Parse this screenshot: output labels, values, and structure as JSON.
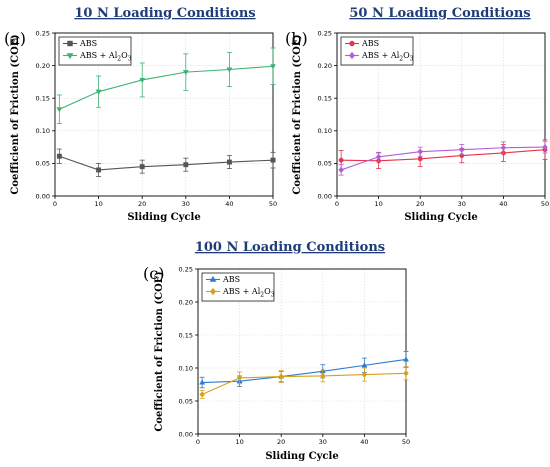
{
  "chart_data": [
    {
      "type": "line",
      "panel_label": "(a)",
      "title": "10 N Loading Conditions",
      "xlabel": "Sliding Cycle",
      "ylabel": "Coefficient of Friction (COF)",
      "xlim": [
        0,
        50
      ],
      "ylim": [
        0,
        0.25
      ],
      "xticks": [
        0,
        10,
        20,
        30,
        40,
        50
      ],
      "yticks": [
        0.0,
        0.05,
        0.1,
        0.15,
        0.2,
        0.25
      ],
      "grid": true,
      "legend_position": "top-left",
      "x": [
        1,
        10,
        20,
        30,
        40,
        50
      ],
      "series": [
        {
          "name": "ABS",
          "legend_sub": "",
          "color": "#555555",
          "marker": "square",
          "values": [
            0.061,
            0.04,
            0.045,
            0.048,
            0.052,
            0.055
          ],
          "errors": [
            0.011,
            0.01,
            0.01,
            0.01,
            0.01,
            0.012
          ]
        },
        {
          "name": "ABS + Al",
          "legend_sub": "2",
          "legend_tail": "O",
          "legend_sub2": "3",
          "color": "#3cb371",
          "marker": "triangle-down",
          "values": [
            0.133,
            0.16,
            0.178,
            0.19,
            0.194,
            0.199
          ],
          "errors": [
            0.022,
            0.024,
            0.026,
            0.028,
            0.026,
            0.028
          ]
        }
      ]
    },
    {
      "type": "line",
      "panel_label": "(b)",
      "title": "50 N Loading Conditions",
      "xlabel": "Sliding Cycle",
      "ylabel": "Coefficient of Friction (COF)",
      "xlim": [
        0,
        50
      ],
      "ylim": [
        0,
        0.25
      ],
      "xticks": [
        0,
        10,
        20,
        30,
        40,
        50
      ],
      "yticks": [
        0.0,
        0.05,
        0.1,
        0.15,
        0.2,
        0.25
      ],
      "grid": true,
      "legend_position": "top-left",
      "x": [
        1,
        10,
        20,
        30,
        40,
        50
      ],
      "series": [
        {
          "name": "ABS",
          "legend_sub": "",
          "color": "#e8334a",
          "marker": "circle",
          "values": [
            0.055,
            0.054,
            0.057,
            0.062,
            0.066,
            0.071
          ],
          "errors": [
            0.015,
            0.012,
            0.012,
            0.011,
            0.013,
            0.015
          ]
        },
        {
          "name": "ABS + Al",
          "legend_sub": "2",
          "legend_tail": "O",
          "legend_sub2": "3",
          "color": "#b05fd8",
          "marker": "diamond",
          "values": [
            0.04,
            0.06,
            0.068,
            0.071,
            0.074,
            0.075
          ],
          "errors": [
            0.008,
            0.007,
            0.007,
            0.008,
            0.009,
            0.009
          ]
        }
      ]
    },
    {
      "type": "line",
      "panel_label": "(c)",
      "title": "100 N Loading Conditions",
      "xlabel": "Sliding Cycle",
      "ylabel": "Coefficient of Friction (COF)",
      "xlim": [
        0,
        50
      ],
      "ylim": [
        0,
        0.25
      ],
      "xticks": [
        0,
        10,
        20,
        30,
        40,
        50
      ],
      "yticks": [
        0.0,
        0.05,
        0.1,
        0.15,
        0.2,
        0.25
      ],
      "grid": true,
      "legend_position": "top-left",
      "x": [
        1,
        10,
        20,
        30,
        40,
        50
      ],
      "series": [
        {
          "name": "ABS",
          "legend_sub": "",
          "color": "#2f7bd0",
          "marker": "triangle-up",
          "values": [
            0.078,
            0.08,
            0.087,
            0.095,
            0.104,
            0.113
          ],
          "errors": [
            0.008,
            0.008,
            0.008,
            0.01,
            0.011,
            0.012
          ]
        },
        {
          "name": "ABS + Al",
          "legend_sub": "2",
          "legend_tail": "O",
          "legend_sub2": "3",
          "color": "#d4a21a",
          "marker": "diamond",
          "values": [
            0.06,
            0.085,
            0.087,
            0.088,
            0.09,
            0.092
          ],
          "errors": [
            0.006,
            0.009,
            0.009,
            0.009,
            0.01,
            0.01
          ]
        }
      ]
    }
  ]
}
